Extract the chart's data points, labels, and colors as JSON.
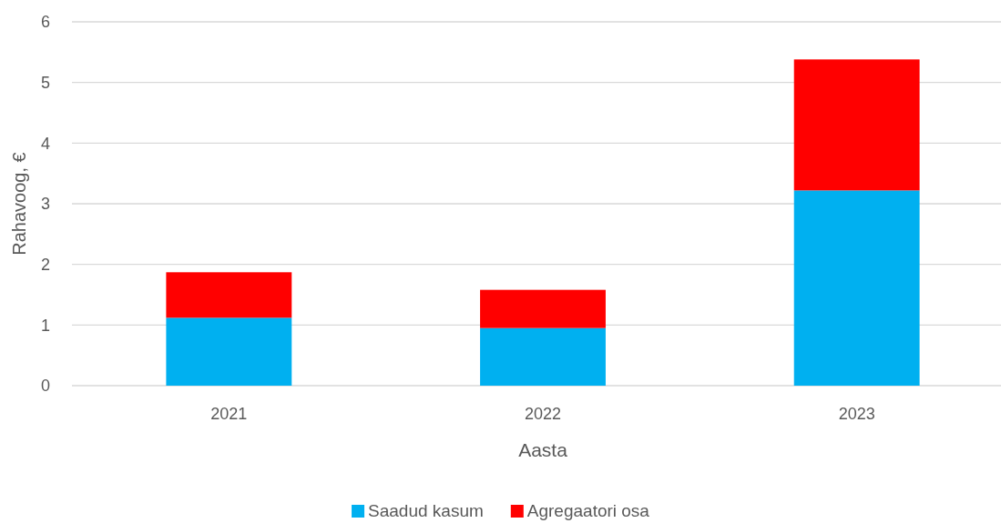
{
  "chart_data": {
    "type": "bar",
    "stacked": true,
    "xlabel": "Aasta",
    "ylabel": "Rahavoog, €",
    "categories": [
      "2021",
      "2022",
      "2023"
    ],
    "series": [
      {
        "name": "Saadud kasum",
        "color": "#00b0f0",
        "values": [
          1.12,
          0.95,
          3.22
        ]
      },
      {
        "name": "Agregaatori osa",
        "color": "#ff0000",
        "values": [
          0.75,
          0.63,
          2.16
        ]
      }
    ],
    "ylim": [
      0,
      6
    ],
    "yticks": [
      0,
      1,
      2,
      3,
      4,
      5,
      6
    ],
    "grid": "y",
    "legend": "bottom"
  }
}
